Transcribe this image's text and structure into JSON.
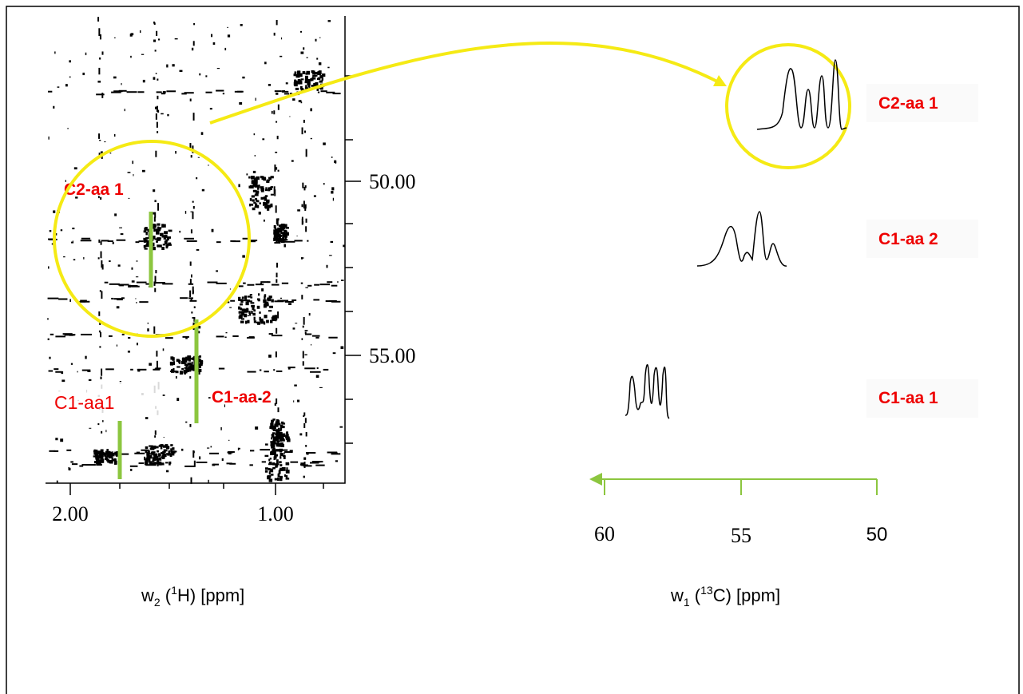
{
  "left_panel": {
    "y_ticks": [
      "50.00",
      "55.00"
    ],
    "x_ticks": [
      "2.00",
      "1.00"
    ],
    "labels": [
      "C2-aa 1",
      "C1-aa 2",
      "C1-aa1"
    ],
    "axis_label": [
      "w",
      "2",
      " (",
      "1",
      "H) [ppm]"
    ]
  },
  "right_panel": {
    "labels": [
      "C2-aa 1",
      "C1-aa 2",
      "C1-aa 1"
    ],
    "x_ticks": [
      "60",
      "55",
      "50"
    ],
    "axis_label": [
      "w",
      "1",
      " (",
      "13",
      "C) [ppm]"
    ]
  }
}
